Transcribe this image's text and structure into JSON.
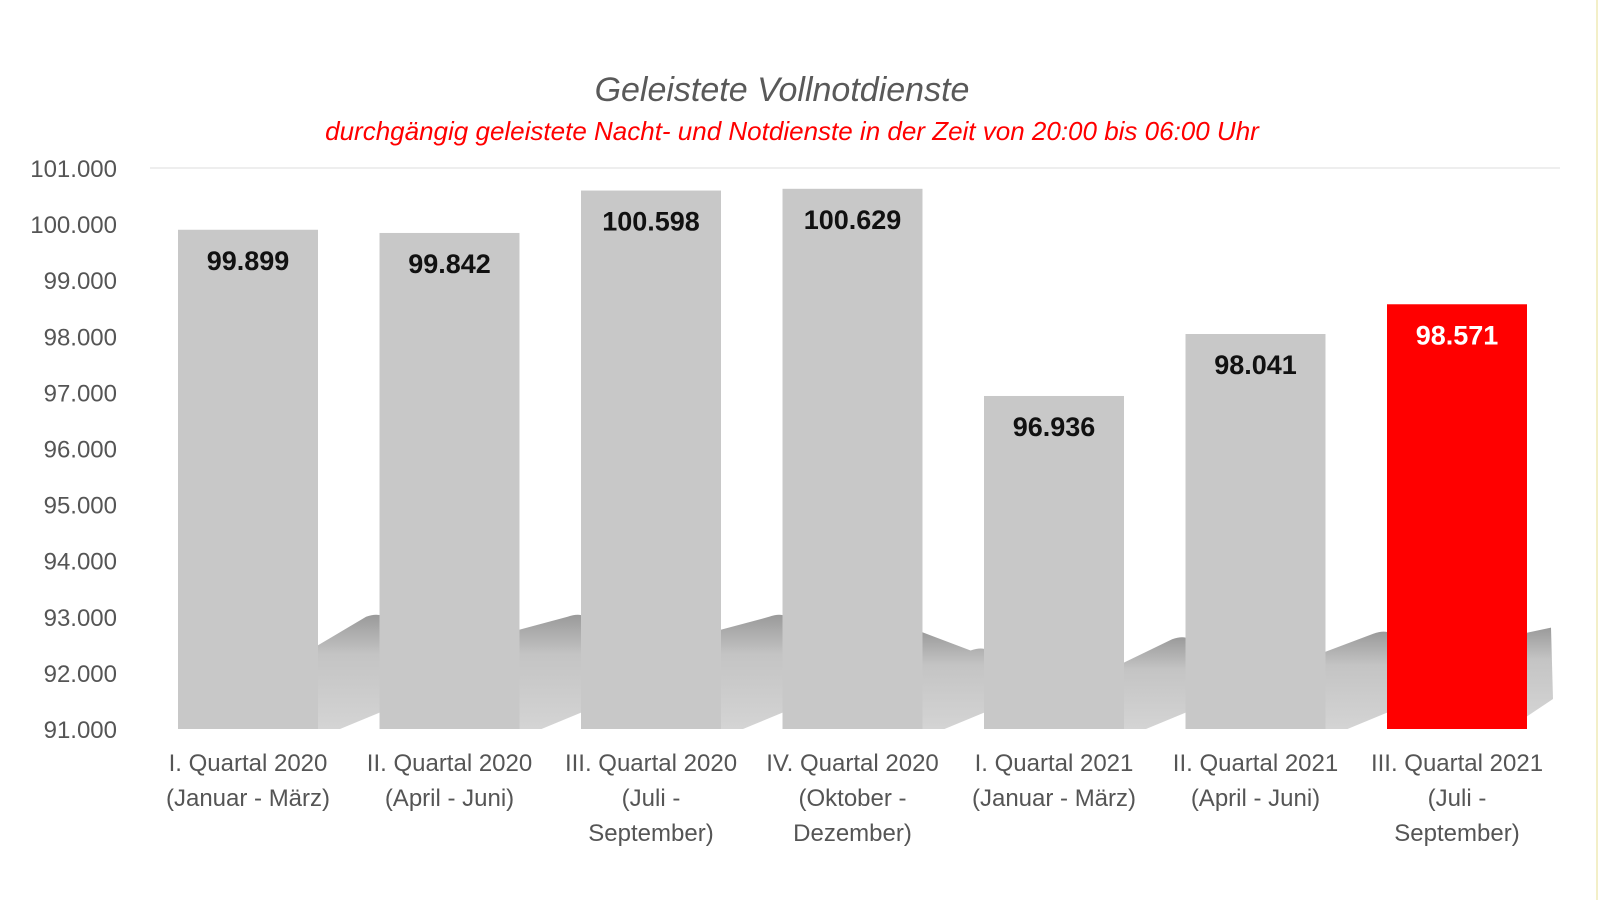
{
  "chart_data": {
    "type": "bar",
    "title": "Geleistete Vollnotdienste",
    "subtitle": "durchgängig geleistete Nacht- und Notdienste in der Zeit von 20:00 bis 06:00 Uhr",
    "xlabel": "",
    "ylabel": "",
    "ylim": [
      91000,
      101000
    ],
    "y_ticks": [
      91000,
      92000,
      93000,
      94000,
      95000,
      96000,
      97000,
      98000,
      99000,
      100000,
      101000
    ],
    "y_tick_labels": [
      "91.000",
      "92.000",
      "93.000",
      "94.000",
      "95.000",
      "96.000",
      "97.000",
      "98.000",
      "99.000",
      "100.000",
      "101.000"
    ],
    "grid": false,
    "categories": [
      [
        "I. Quartal 2020",
        "(Januar - März)"
      ],
      [
        "II. Quartal 2020",
        "(April - Juni)"
      ],
      [
        "III. Quartal 2020",
        "(Juli -",
        "September)"
      ],
      [
        "IV. Quartal 2020",
        "(Oktober -",
        "Dezember)"
      ],
      [
        "I. Quartal 2021",
        "(Januar - März)"
      ],
      [
        "II. Quartal 2021",
        "(April - Juni)"
      ],
      [
        "III. Quartal 2021",
        "(Juli -",
        "September)"
      ]
    ],
    "values": [
      99899,
      99842,
      100598,
      100629,
      96936,
      98041,
      98571
    ],
    "value_labels": [
      "99.899",
      "99.842",
      "100.598",
      "100.629",
      "96.936",
      "98.041",
      "98.571"
    ],
    "highlight_index": 6,
    "trend_values": [
      92700,
      93000,
      93000,
      93000,
      92400,
      92600,
      92700
    ]
  },
  "colors": {
    "bar": "#c8c8c8",
    "highlight_bar": "#ff0000",
    "trend_band": "#c4c4c4",
    "title": "#595959",
    "subtitle": "#ff0000",
    "value_label": "#111111",
    "highlight_value_label": "#ffffff",
    "axis_text": "#555555",
    "baseline": "#dddddd"
  }
}
